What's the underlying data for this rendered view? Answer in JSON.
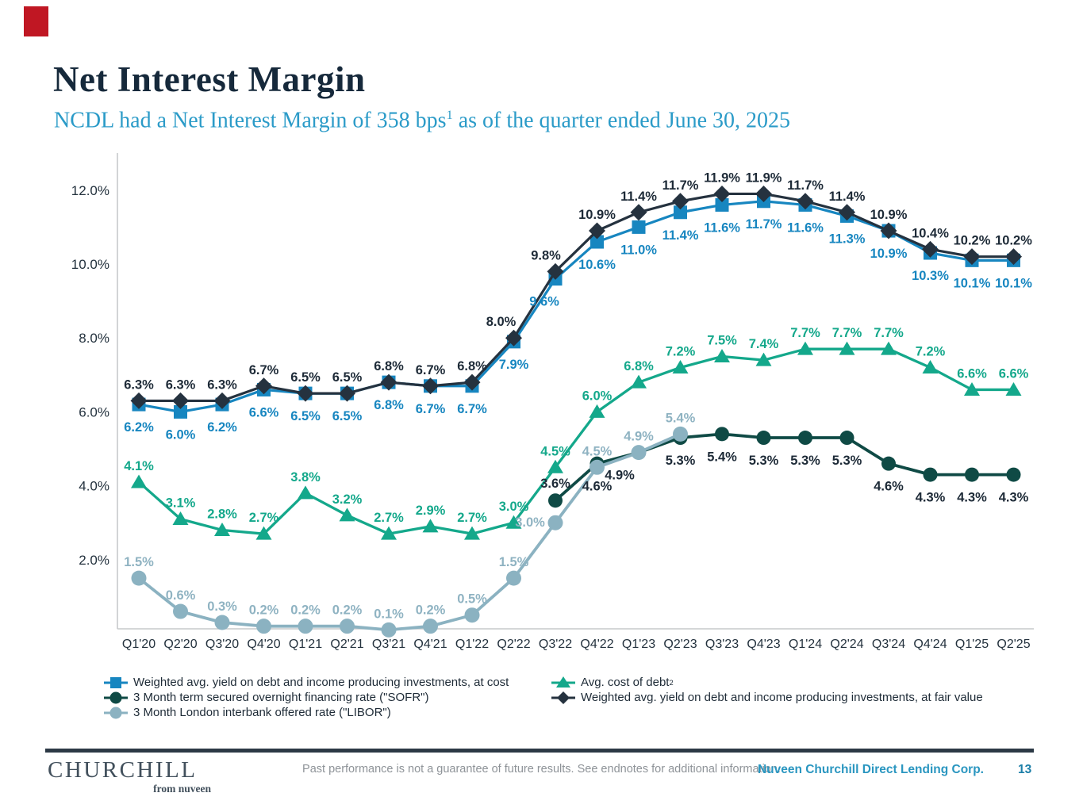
{
  "header": {
    "title": "Net Interest Margin",
    "subtitle_prefix": "NCDL had a Net Interest Margin of 358 bps",
    "subtitle_sup": "1",
    "subtitle_suffix": " as of the quarter ended June 30, 2025"
  },
  "chart_data": {
    "type": "line",
    "title": "Net Interest Margin",
    "xlabel": "",
    "ylabel": "",
    "ylim": [
      0,
      13
    ],
    "grid": false,
    "legend_position": "bottom",
    "categories": [
      "Q1'20",
      "Q2'20",
      "Q3'20",
      "Q4'20",
      "Q1'21",
      "Q2'21",
      "Q3'21",
      "Q4'21",
      "Q1'22",
      "Q2'22",
      "Q3'22",
      "Q4'22",
      "Q1'23",
      "Q2'23",
      "Q3'23",
      "Q4'23",
      "Q1'24",
      "Q2'24",
      "Q3'24",
      "Q4'24",
      "Q1'25",
      "Q2'25"
    ],
    "y_ticks": [
      {
        "label": "2.0%",
        "value": 2
      },
      {
        "label": "4.0%",
        "value": 4
      },
      {
        "label": "6.0%",
        "value": 6
      },
      {
        "label": "8.0%",
        "value": 8
      },
      {
        "label": "10.0%",
        "value": 10
      },
      {
        "label": "12.0%",
        "value": 12
      }
    ],
    "series": [
      {
        "key": "cost",
        "name": "Weighted avg. yield on debt and income producing investments, at cost",
        "marker": "square",
        "color": "#1786c0",
        "label_color": "#1786c0",
        "values": [
          6.2,
          6.0,
          6.2,
          6.6,
          6.5,
          6.5,
          6.8,
          6.7,
          6.7,
          7.9,
          9.6,
          10.6,
          11.0,
          11.4,
          11.6,
          11.7,
          11.6,
          11.3,
          10.9,
          10.3,
          10.1,
          10.1
        ]
      },
      {
        "key": "fair",
        "name": "Weighted avg. yield on debt and income producing investments, at fair value",
        "marker": "diamond",
        "color": "#25323f",
        "label_color": "#1d2a37",
        "values": [
          6.3,
          6.3,
          6.3,
          6.7,
          6.5,
          6.5,
          6.8,
          6.7,
          6.8,
          8.0,
          9.8,
          10.9,
          11.4,
          11.7,
          11.9,
          11.9,
          11.7,
          11.4,
          10.9,
          10.4,
          10.2,
          10.2
        ]
      },
      {
        "key": "debt",
        "name": "Avg. cost of debt",
        "marker": "triangle",
        "color": "#14a88b",
        "label_color": "#14a88b",
        "values": [
          4.1,
          3.1,
          2.8,
          2.7,
          3.8,
          3.2,
          2.7,
          2.9,
          2.7,
          3.0,
          4.5,
          6.0,
          6.8,
          7.2,
          7.5,
          7.4,
          7.7,
          7.7,
          7.7,
          7.2,
          6.6,
          6.6
        ]
      },
      {
        "key": "sofr",
        "name": "3 Month term secured overnight financing rate (\"SOFR\")",
        "marker": "circle",
        "color": "#0f4a45",
        "label_color": "#1d2a37",
        "values": [
          null,
          null,
          null,
          null,
          null,
          null,
          null,
          null,
          null,
          null,
          3.6,
          4.6,
          4.9,
          5.3,
          5.4,
          5.3,
          5.3,
          5.3,
          4.6,
          4.3,
          4.3,
          4.3
        ]
      },
      {
        "key": "libor",
        "name": "3 Month London interbank offered rate (\"LIBOR\")",
        "marker": "circle",
        "color": "#8bb2c1",
        "label_color": "#8fb3c2",
        "values": [
          1.5,
          0.6,
          0.3,
          0.2,
          0.2,
          0.2,
          0.1,
          0.2,
          0.5,
          1.5,
          3.0,
          4.5,
          4.9,
          5.4,
          null,
          null,
          null,
          null,
          null,
          null,
          null,
          null
        ]
      }
    ]
  },
  "legend": {
    "debt_sup": "2"
  },
  "footer": {
    "brand_word": "CHURCHILL",
    "brand_tag": "from nuveen",
    "disclaimer": "Past performance is not a guarantee of future results. See endnotes for additional information.",
    "corp": "Nuveen Churchill Direct Lending Corp.",
    "page_number": "13"
  }
}
